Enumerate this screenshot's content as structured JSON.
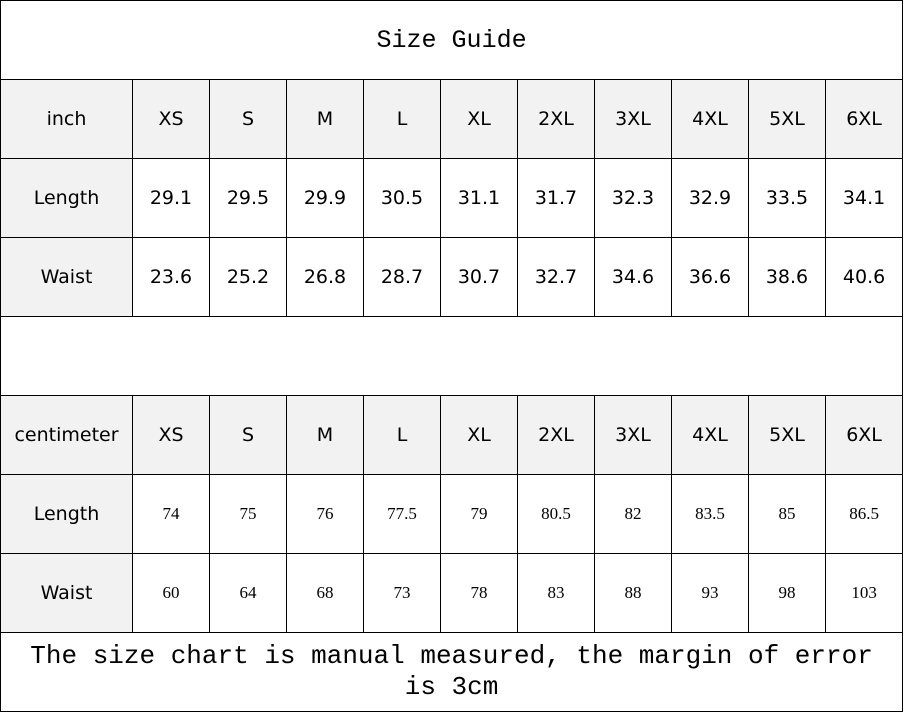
{
  "title": "Size Guide",
  "inch_table": {
    "header": [
      "inch",
      "XS",
      "S",
      "M",
      "L",
      "XL",
      "2XL",
      "3XL",
      "4XL",
      "5XL",
      "6XL"
    ],
    "rows": [
      {
        "label": "Length",
        "values": [
          "29.1",
          "29.5",
          "29.9",
          "30.5",
          "31.1",
          "31.7",
          "32.3",
          "32.9",
          "33.5",
          "34.1"
        ]
      },
      {
        "label": "Waist",
        "values": [
          "23.6",
          "25.2",
          "26.8",
          "28.7",
          "30.7",
          "32.7",
          "34.6",
          "36.6",
          "38.6",
          "40.6"
        ]
      }
    ]
  },
  "cm_table": {
    "header": [
      "centimeter",
      "XS",
      "S",
      "M",
      "L",
      "XL",
      "2XL",
      "3XL",
      "4XL",
      "5XL",
      "6XL"
    ],
    "rows": [
      {
        "label": "Length",
        "values": [
          "74",
          "75",
          "76",
          "77.5",
          "79",
          "80.5",
          "82",
          "83.5",
          "85",
          "86.5"
        ]
      },
      {
        "label": "Waist",
        "values": [
          "60",
          "64",
          "68",
          "73",
          "78",
          "83",
          "88",
          "93",
          "98",
          "103"
        ]
      }
    ]
  },
  "footer": "The size chart is manual measured, the margin of error is 3cm",
  "colors": {
    "header_bg": "#f2f2f2",
    "border": "#000000"
  }
}
